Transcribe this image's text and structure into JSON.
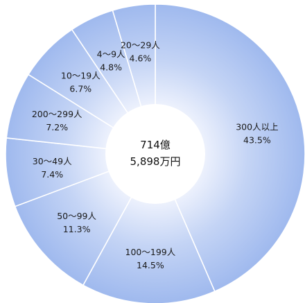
{
  "chart_data": {
    "type": "pie",
    "style": "donut",
    "center_lines": [
      "714億",
      "5,898万円"
    ],
    "slices": [
      {
        "label": "300人以上",
        "value": 43.5,
        "value_text": "43.5%"
      },
      {
        "label": "100〜199人",
        "value": 14.5,
        "value_text": "14.5%"
      },
      {
        "label": "50〜99人",
        "value": 11.3,
        "value_text": "11.3%"
      },
      {
        "label": "30〜49人",
        "value": 7.4,
        "value_text": "7.4%"
      },
      {
        "label": "200〜299人",
        "value": 7.2,
        "value_text": "7.2%"
      },
      {
        "label": "10〜19人",
        "value": 6.7,
        "value_text": "6.7%"
      },
      {
        "label": "4〜9人",
        "value": 4.8,
        "value_text": "4.8%"
      },
      {
        "label": "20〜29人",
        "value": 4.6,
        "value_text": "4.6%"
      }
    ],
    "start": "12 o'clock",
    "direction": "clockwise",
    "legend": "none",
    "colors": {
      "gradient_outer": "#9fb9ee",
      "gradient_mid": "#c4d4f5",
      "gradient_inner": "#eef2fd",
      "border": "#ffffff",
      "text": "#1a1a1a"
    }
  }
}
